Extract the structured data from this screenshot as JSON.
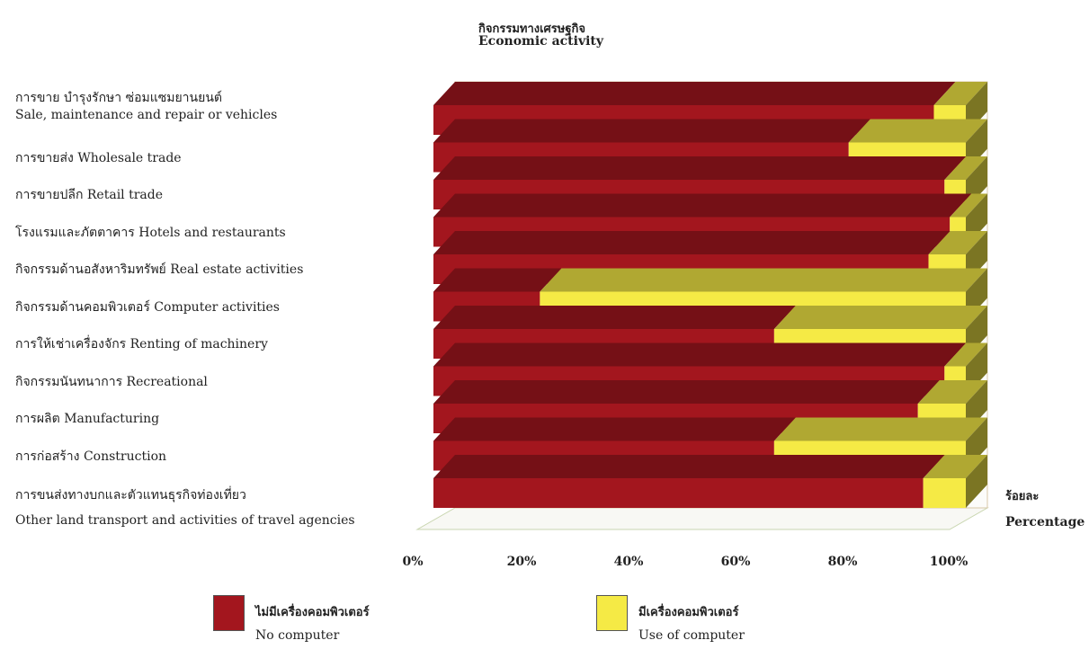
{
  "chart_data": {
    "type": "bar",
    "orientation": "horizontal",
    "stacked": "percent",
    "three_d": true,
    "title_th": "กิจกรรมทางเศรษฐกิจ",
    "title_en": "Economic activity",
    "unit_th": "ร้อยละ",
    "unit_en": "Percentage",
    "categories": [
      {
        "th": "การขาย บำรุงรักษา ซ่อมแซมยานยนต์",
        "en": "Sale, maintenance and repair or vehicles"
      },
      {
        "th": "การขายส่ง",
        "en": "Wholesale trade"
      },
      {
        "th": "การขายปลีก",
        "en": "Retail trade"
      },
      {
        "th": "โรงแรมและภัตตาคาร",
        "en": "Hotels and restaurants"
      },
      {
        "th": "กิจกรรมด้านอสังหาริมทรัพย์",
        "en": "Real estate activities"
      },
      {
        "th": "กิจกรรมด้านคอมพิวเตอร์",
        "en": "Computer activities"
      },
      {
        "th": "การให้เช่าเครื่องจักร",
        "en": "Renting of machinery"
      },
      {
        "th": "กิจกรรมนันทนาการ",
        "en": "Recreational"
      },
      {
        "th": "การผลิต",
        "en": "Manufacturing"
      },
      {
        "th": "การก่อสร้าง",
        "en": "Construction"
      },
      {
        "th": "การขนส่งทางบกและตัวแทนธุรกิจท่องเที่ยว",
        "en": "Other land transport and activities of travel agencies"
      }
    ],
    "series": [
      {
        "name_th": "ไม่มีเครื่องคอมพิวเตอร์",
        "name_en": "No computer",
        "color": "#a3161e",
        "values": [
          94,
          78,
          96,
          97,
          93,
          20,
          64,
          96,
          91,
          64,
          92
        ]
      },
      {
        "name_th": "มีเครื่องคอมพิวเตอร์",
        "name_en": "Use of computer",
        "color": "#f5ea45",
        "values": [
          6,
          22,
          4,
          3,
          7,
          80,
          36,
          4,
          9,
          36,
          8
        ]
      }
    ],
    "x_ticks": [
      "0%",
      "20%",
      "40%",
      "60%",
      "80%",
      "100%"
    ],
    "xlim": [
      0,
      100
    ],
    "legend_position": "bottom"
  }
}
